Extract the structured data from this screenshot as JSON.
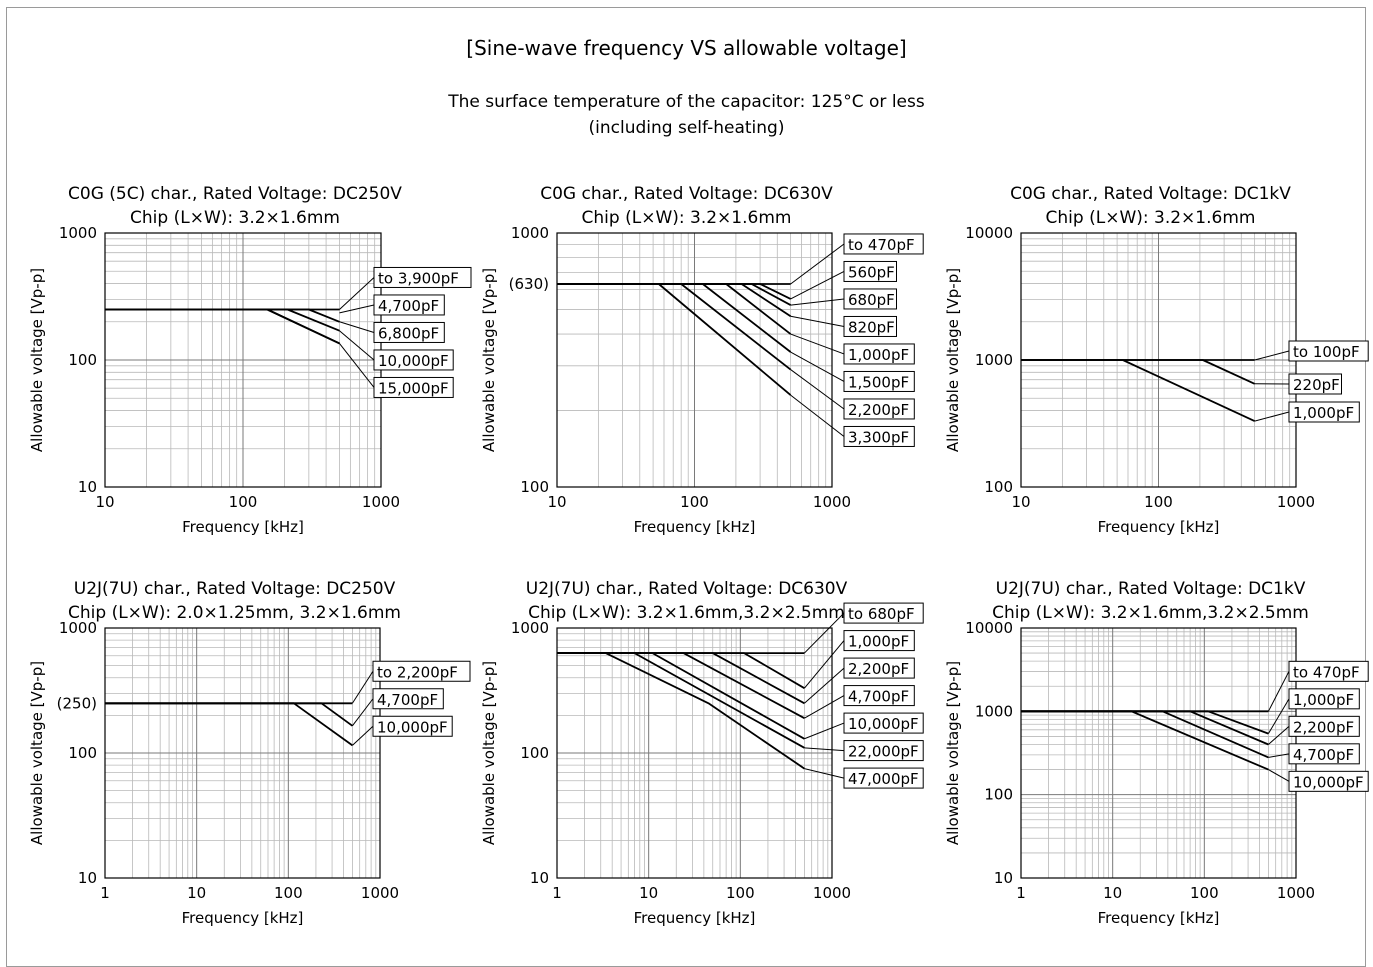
{
  "header": {
    "title": "[Sine-wave frequency VS allowable voltage]",
    "subtitle_line1": "The surface temperature of the capacitor: 125°C or less",
    "subtitle_line2": "(including self-heating)"
  },
  "chart_data": [
    {
      "type": "line",
      "scale": "log-log",
      "title": "C0G (5C) char., Rated Voltage: DC250V",
      "subtitle": "Chip (L×W): 3.2×1.6mm",
      "xlabel": "Frequency [kHz]",
      "ylabel": "Allowable voltage [Vp-p]",
      "xlim": [
        10,
        1000
      ],
      "ylim": [
        10,
        1000
      ],
      "xticks": [
        10,
        100,
        1000
      ],
      "xtick_labels": [
        "10",
        "100",
        "1000"
      ],
      "yticks": [
        10,
        100,
        1000
      ],
      "ytick_labels": [
        "10",
        "100",
        "1000"
      ],
      "grid": true,
      "series": [
        {
          "name": "to 3,900pF",
          "points": [
            [
              10,
              250
            ],
            [
              500,
              250
            ]
          ]
        },
        {
          "name": "4,700pF",
          "points": [
            [
              10,
              250
            ],
            [
              300,
              250
            ],
            [
              500,
              200
            ]
          ]
        },
        {
          "name": "6,800pF",
          "points": [
            [
              10,
              250
            ],
            [
              210,
              250
            ],
            [
              500,
              170
            ]
          ]
        },
        {
          "name": "10,000pF",
          "points": [
            [
              10,
              250
            ],
            [
              150,
              250
            ],
            [
              500,
              135
            ]
          ]
        },
        {
          "name": "15,000pF",
          "points": [
            [
              10,
              250
            ],
            [
              150,
              250
            ],
            [
              500,
              135
            ]
          ]
        }
      ],
      "labels": [
        {
          "text": "to 3,900pF",
          "at": [
            500,
            250
          ]
        },
        {
          "text": "4,700pF",
          "at": [
            500,
            235
          ]
        },
        {
          "text": "6,800pF",
          "at": [
            500,
            200
          ]
        },
        {
          "text": "10,000pF",
          "at": [
            500,
            170
          ]
        },
        {
          "text": "15,000pF",
          "at": [
            500,
            135
          ]
        }
      ]
    },
    {
      "type": "line",
      "scale": "log-log",
      "title": "C0G char., Rated Voltage: DC630V",
      "subtitle": "Chip (L×W): 3.2×1.6mm",
      "xlabel": "Frequency [kHz]",
      "ylabel": "Allowable voltage [Vp-p]",
      "xlim": [
        10,
        1000
      ],
      "ylim": [
        100,
        1000
      ],
      "xticks": [
        10,
        100,
        1000
      ],
      "xtick_labels": [
        "10",
        "100",
        "1000"
      ],
      "yticks": [
        100,
        630,
        1000
      ],
      "ytick_labels": [
        "100",
        "(630)",
        "1000"
      ],
      "grid": true,
      "series": [
        {
          "name": "to 470pF",
          "points": [
            [
              10,
              630
            ],
            [
              500,
              630
            ]
          ]
        },
        {
          "name": "560pF",
          "points": [
            [
              10,
              630
            ],
            [
              300,
              630
            ],
            [
              500,
              550
            ]
          ]
        },
        {
          "name": "680pF",
          "points": [
            [
              10,
              630
            ],
            [
              260,
              630
            ],
            [
              500,
              520
            ]
          ]
        },
        {
          "name": "820pF",
          "points": [
            [
              10,
              630
            ],
            [
              220,
              630
            ],
            [
              500,
              470
            ]
          ]
        },
        {
          "name": "1,000pF",
          "points": [
            [
              10,
              630
            ],
            [
              170,
              630
            ],
            [
              500,
              400
            ]
          ]
        },
        {
          "name": "1,500pF",
          "points": [
            [
              10,
              630
            ],
            [
              115,
              630
            ],
            [
              500,
              340
            ]
          ]
        },
        {
          "name": "2,200pF",
          "points": [
            [
              10,
              630
            ],
            [
              80,
              630
            ],
            [
              500,
              290
            ]
          ]
        },
        {
          "name": "3,300pF",
          "points": [
            [
              10,
              630
            ],
            [
              55,
              630
            ],
            [
              500,
              230
            ]
          ]
        }
      ],
      "labels": [
        {
          "text": "to 470pF",
          "at": [
            500,
            630
          ]
        },
        {
          "text": "560pF",
          "at": [
            500,
            550
          ]
        },
        {
          "text": "680pF",
          "at": [
            500,
            520
          ]
        },
        {
          "text": "820pF",
          "at": [
            500,
            470
          ]
        },
        {
          "text": "1,000pF",
          "at": [
            500,
            400
          ]
        },
        {
          "text": "1,500pF",
          "at": [
            500,
            340
          ]
        },
        {
          "text": "2,200pF",
          "at": [
            500,
            290
          ]
        },
        {
          "text": "3,300pF",
          "at": [
            500,
            230
          ]
        }
      ]
    },
    {
      "type": "line",
      "scale": "log-log",
      "title": "C0G char., Rated Voltage: DC1kV",
      "subtitle": "Chip (L×W): 3.2×1.6mm",
      "xlabel": "Frequency [kHz]",
      "ylabel": "Allowable voltage [Vp-p]",
      "xlim": [
        10,
        1000
      ],
      "ylim": [
        100,
        10000
      ],
      "xticks": [
        10,
        100,
        1000
      ],
      "xtick_labels": [
        "10",
        "100",
        "1000"
      ],
      "yticks": [
        100,
        1000,
        10000
      ],
      "ytick_labels": [
        "100",
        "1000",
        "10000"
      ],
      "grid": true,
      "series": [
        {
          "name": "to 100pF",
          "points": [
            [
              10,
              1000
            ],
            [
              500,
              1000
            ]
          ]
        },
        {
          "name": "220pF",
          "points": [
            [
              10,
              1000
            ],
            [
              210,
              1000
            ],
            [
              500,
              650
            ]
          ]
        },
        {
          "name": "1,000pF",
          "points": [
            [
              10,
              1000
            ],
            [
              55,
              1000
            ],
            [
              500,
              330
            ]
          ]
        }
      ],
      "labels": [
        {
          "text": "to 100pF",
          "at": [
            500,
            1000
          ]
        },
        {
          "text": "220pF",
          "at": [
            500,
            650
          ]
        },
        {
          "text": "1,000pF",
          "at": [
            500,
            330
          ]
        }
      ]
    },
    {
      "type": "line",
      "scale": "log-log",
      "title": "U2J(7U) char., Rated Voltage: DC250V",
      "subtitle": "Chip (L×W): 2.0×1.25mm, 3.2×1.6mm",
      "xlabel": "Frequency [kHz]",
      "ylabel": "Allowable voltage [Vp-p]",
      "xlim": [
        1,
        1000
      ],
      "ylim": [
        10,
        1000
      ],
      "xticks": [
        1,
        10,
        100,
        1000
      ],
      "xtick_labels": [
        "1",
        "10",
        "100",
        "1000"
      ],
      "yticks": [
        10,
        100,
        250,
        1000
      ],
      "ytick_labels": [
        "10",
        "100",
        "(250)",
        "1000"
      ],
      "grid": true,
      "series": [
        {
          "name": "to 2,200pF",
          "points": [
            [
              1,
              250
            ],
            [
              500,
              250
            ]
          ]
        },
        {
          "name": "4,700pF",
          "points": [
            [
              1,
              250
            ],
            [
              230,
              250
            ],
            [
              500,
              165
            ]
          ]
        },
        {
          "name": "10,000pF",
          "points": [
            [
              1,
              250
            ],
            [
              115,
              250
            ],
            [
              500,
              115
            ]
          ]
        }
      ],
      "labels": [
        {
          "text": "to 2,200pF",
          "at": [
            500,
            250
          ]
        },
        {
          "text": "4,700pF",
          "at": [
            500,
            165
          ]
        },
        {
          "text": "10,000pF",
          "at": [
            500,
            115
          ]
        }
      ]
    },
    {
      "type": "line",
      "scale": "log-log",
      "title": "U2J(7U) char., Rated Voltage: DC630V",
      "subtitle": "Chip (L×W): 3.2×1.6mm,3.2×2.5mm",
      "xlabel": "Frequency [kHz]",
      "ylabel": "Allowable voltage [Vp-p]",
      "xlim": [
        1,
        1000
      ],
      "ylim": [
        10,
        1000
      ],
      "xticks": [
        1,
        10,
        100,
        1000
      ],
      "xtick_labels": [
        "1",
        "10",
        "100",
        "1000"
      ],
      "yticks": [
        10,
        100,
        1000
      ],
      "ytick_labels": [
        "10",
        "100",
        "1000"
      ],
      "grid": true,
      "series": [
        {
          "name": "to 680pF",
          "points": [
            [
              1,
              630
            ],
            [
              500,
              630
            ]
          ]
        },
        {
          "name": "1,000pF",
          "points": [
            [
              1,
              630
            ],
            [
              110,
              630
            ],
            [
              500,
              330
            ]
          ]
        },
        {
          "name": "2,200pF",
          "points": [
            [
              1,
              630
            ],
            [
              50,
              630
            ],
            [
              500,
              250
            ]
          ]
        },
        {
          "name": "4,700pF",
          "points": [
            [
              1,
              630
            ],
            [
              24,
              630
            ],
            [
              500,
              190
            ]
          ]
        },
        {
          "name": "10,000pF",
          "points": [
            [
              1,
              630
            ],
            [
              11,
              630
            ],
            [
              500,
              130
            ]
          ]
        },
        {
          "name": "22,000pF",
          "points": [
            [
              1,
              630
            ],
            [
              7,
              630
            ],
            [
              500,
              110
            ]
          ]
        },
        {
          "name": "47,000pF",
          "points": [
            [
              1,
              630
            ],
            [
              3.4,
              630
            ],
            [
              45,
              250
            ],
            [
              500,
              75
            ]
          ]
        }
      ],
      "labels": [
        {
          "text": "to 680pF",
          "at": [
            500,
            630
          ]
        },
        {
          "text": "1,000pF",
          "at": [
            500,
            330
          ]
        },
        {
          "text": "2,200pF",
          "at": [
            500,
            250
          ]
        },
        {
          "text": "4,700pF",
          "at": [
            500,
            190
          ]
        },
        {
          "text": "10,000pF",
          "at": [
            500,
            130
          ]
        },
        {
          "text": "22,000pF",
          "at": [
            500,
            110
          ]
        },
        {
          "text": "47,000pF",
          "at": [
            500,
            75
          ]
        }
      ]
    },
    {
      "type": "line",
      "scale": "log-log",
      "title": "U2J(7U) char., Rated Voltage: DC1kV",
      "subtitle": "Chip (L×W): 3.2×1.6mm,3.2×2.5mm",
      "xlabel": "Frequency [kHz]",
      "ylabel": "Allowable voltage [Vp-p]",
      "xlim": [
        1,
        1000
      ],
      "ylim": [
        10,
        10000
      ],
      "xticks": [
        1,
        10,
        100,
        1000
      ],
      "xtick_labels": [
        "1",
        "10",
        "100",
        "1000"
      ],
      "yticks": [
        10,
        100,
        1000,
        10000
      ],
      "ytick_labels": [
        "10",
        "100",
        "1000",
        "10000"
      ],
      "grid": true,
      "series": [
        {
          "name": "to 470pF",
          "points": [
            [
              1,
              1000
            ],
            [
              500,
              1000
            ]
          ]
        },
        {
          "name": "1,000pF",
          "points": [
            [
              1,
              1000
            ],
            [
              110,
              1000
            ],
            [
              500,
              540
            ]
          ]
        },
        {
          "name": "2,200pF",
          "points": [
            [
              1,
              1000
            ],
            [
              70,
              1000
            ],
            [
              500,
              400
            ]
          ]
        },
        {
          "name": "4,700pF",
          "points": [
            [
              1,
              1000
            ],
            [
              35,
              1000
            ],
            [
              500,
              280
            ]
          ]
        },
        {
          "name": "10,000pF",
          "points": [
            [
              1,
              1000
            ],
            [
              16,
              1000
            ],
            [
              500,
              200
            ]
          ]
        }
      ],
      "labels": [
        {
          "text": "to 470pF",
          "at": [
            500,
            1000
          ]
        },
        {
          "text": "1,000pF",
          "at": [
            500,
            540
          ]
        },
        {
          "text": "2,200pF",
          "at": [
            500,
            400
          ]
        },
        {
          "text": "4,700pF",
          "at": [
            500,
            280
          ]
        },
        {
          "text": "10,000pF",
          "at": [
            500,
            200
          ]
        }
      ]
    }
  ]
}
